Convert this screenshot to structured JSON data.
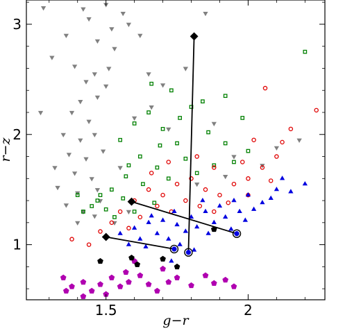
{
  "chart_data": {
    "type": "scatter",
    "title": "",
    "xlabel": "g−r",
    "ylabel": "r−z",
    "xlim": [
      1.22,
      2.27
    ],
    "ylim": [
      0.5,
      3.22
    ],
    "xticks": [
      1.5,
      2.0
    ],
    "xtick_labels": [
      "1.5",
      "2"
    ],
    "yticks": [
      1,
      2,
      3
    ],
    "ytick_labels": [
      "1",
      "2",
      "3"
    ],
    "grid": false,
    "legend": "none",
    "colors": {
      "gray": "#808080",
      "green": "#008000",
      "red": "#e00000",
      "blue": "#0000e0",
      "magenta": "#b000b0",
      "black": "#000000"
    },
    "series": [
      {
        "marker": "triangle-down",
        "color": "#808080",
        "filled": true,
        "points": [
          [
            1.42,
            3.14
          ],
          [
            1.44,
            3.05
          ],
          [
            1.5,
            3.18
          ],
          [
            1.52,
            2.96
          ],
          [
            1.56,
            3.1
          ],
          [
            1.47,
            2.85
          ],
          [
            1.53,
            2.78
          ],
          [
            1.58,
            3.0
          ],
          [
            1.39,
            2.62
          ],
          [
            1.43,
            2.48
          ],
          [
            1.46,
            2.55
          ],
          [
            1.41,
            2.3
          ],
          [
            1.47,
            2.34
          ],
          [
            1.5,
            2.44
          ],
          [
            1.38,
            2.2
          ],
          [
            1.44,
            2.12
          ],
          [
            1.35,
            2.0
          ],
          [
            1.41,
            1.95
          ],
          [
            1.46,
            2.0
          ],
          [
            1.37,
            1.82
          ],
          [
            1.43,
            1.78
          ],
          [
            1.49,
            1.85
          ],
          [
            1.39,
            1.65
          ],
          [
            1.45,
            1.6
          ],
          [
            1.33,
            1.52
          ],
          [
            1.4,
            1.47
          ],
          [
            1.47,
            1.5
          ],
          [
            1.36,
            1.36
          ],
          [
            1.42,
            1.3
          ],
          [
            1.48,
            1.4
          ],
          [
            1.4,
            1.2
          ],
          [
            1.46,
            1.26
          ],
          [
            1.28,
            3.15
          ],
          [
            1.31,
            2.7
          ],
          [
            1.27,
            2.2
          ],
          [
            1.32,
            1.7
          ],
          [
            1.62,
            2.9
          ],
          [
            1.65,
            2.55
          ],
          [
            1.7,
            2.45
          ],
          [
            1.78,
            2.6
          ],
          [
            1.85,
            3.1
          ],
          [
            1.82,
            1.55
          ],
          [
            1.92,
            1.62
          ],
          [
            2.05,
            1.72
          ],
          [
            2.18,
            1.95
          ],
          [
            1.88,
            2.1
          ],
          [
            1.6,
            2.15
          ],
          [
            1.55,
            1.7
          ],
          [
            1.53,
            1.2
          ],
          [
            1.58,
            1.3
          ],
          [
            1.66,
            2.25
          ],
          [
            1.72,
            2.05
          ],
          [
            1.95,
            1.8
          ],
          [
            2.1,
            1.88
          ],
          [
            1.51,
            2.6
          ],
          [
            1.36,
            2.9
          ]
        ]
      },
      {
        "marker": "square",
        "color": "#008000",
        "filled": false,
        "points": [
          [
            1.55,
            1.95
          ],
          [
            1.6,
            2.1
          ],
          [
            1.65,
            2.2
          ],
          [
            1.7,
            2.05
          ],
          [
            1.75,
            1.92
          ],
          [
            1.8,
            2.25
          ],
          [
            1.62,
            1.8
          ],
          [
            1.68,
            1.7
          ],
          [
            1.57,
            1.62
          ],
          [
            1.52,
            1.5
          ],
          [
            1.47,
            1.4
          ],
          [
            1.5,
            1.32
          ],
          [
            1.56,
            1.42
          ],
          [
            1.63,
            1.55
          ],
          [
            1.72,
            1.6
          ],
          [
            1.78,
            1.78
          ],
          [
            1.86,
            2.02
          ],
          [
            1.92,
            1.92
          ],
          [
            1.98,
            2.15
          ],
          [
            1.84,
            2.3
          ],
          [
            1.73,
            2.4
          ],
          [
            1.66,
            2.46
          ],
          [
            1.92,
            2.35
          ],
          [
            1.95,
            1.75
          ],
          [
            1.45,
            1.35
          ],
          [
            1.48,
            1.45
          ],
          [
            1.53,
            1.25
          ],
          [
            1.42,
            1.3
          ],
          [
            1.4,
            1.45
          ],
          [
            1.6,
            1.3
          ],
          [
            1.67,
            1.38
          ],
          [
            2.0,
            1.85
          ],
          [
            1.82,
            1.65
          ],
          [
            1.88,
            1.72
          ],
          [
            2.2,
            2.75
          ],
          [
            1.76,
            2.15
          ],
          [
            1.58,
            1.72
          ],
          [
            1.69,
            1.9
          ]
        ]
      },
      {
        "marker": "circle",
        "color": "#e00000",
        "filled": false,
        "points": [
          [
            1.55,
            1.3
          ],
          [
            1.6,
            1.4
          ],
          [
            1.65,
            1.5
          ],
          [
            1.7,
            1.45
          ],
          [
            1.75,
            1.55
          ],
          [
            1.8,
            1.6
          ],
          [
            1.85,
            1.5
          ],
          [
            1.9,
            1.45
          ],
          [
            1.95,
            1.55
          ],
          [
            2.0,
            1.6
          ],
          [
            2.05,
            1.7
          ],
          [
            2.1,
            1.8
          ],
          [
            2.06,
            2.42
          ],
          [
            2.24,
            2.22
          ],
          [
            2.15,
            2.05
          ],
          [
            2.02,
            1.95
          ],
          [
            1.98,
            1.75
          ],
          [
            1.62,
            1.25
          ],
          [
            1.68,
            1.35
          ],
          [
            1.73,
            1.3
          ],
          [
            1.78,
            1.4
          ],
          [
            1.83,
            1.35
          ],
          [
            1.88,
            1.3
          ],
          [
            1.93,
            1.38
          ],
          [
            1.52,
            1.2
          ],
          [
            1.48,
            1.12
          ],
          [
            1.58,
            1.15
          ],
          [
            1.38,
            1.05
          ],
          [
            1.44,
            1.0
          ],
          [
            1.66,
            1.65
          ],
          [
            1.72,
            1.75
          ],
          [
            1.82,
            1.8
          ],
          [
            1.88,
            1.7
          ],
          [
            2.08,
            1.58
          ],
          [
            2.12,
            1.93
          ],
          [
            2.0,
            1.45
          ]
        ]
      },
      {
        "marker": "triangle-up",
        "color": "#0000e0",
        "filled": true,
        "points": [
          [
            1.55,
            1.1
          ],
          [
            1.6,
            1.15
          ],
          [
            1.65,
            1.2
          ],
          [
            1.7,
            1.22
          ],
          [
            1.75,
            1.18
          ],
          [
            1.8,
            1.25
          ],
          [
            1.85,
            1.3
          ],
          [
            1.9,
            1.35
          ],
          [
            1.95,
            1.4
          ],
          [
            2.0,
            1.45
          ],
          [
            2.05,
            1.38
          ],
          [
            2.1,
            1.5
          ],
          [
            2.15,
            1.48
          ],
          [
            2.2,
            1.55
          ],
          [
            1.62,
            1.05
          ],
          [
            1.68,
            1.1
          ],
          [
            1.72,
            1.05
          ],
          [
            1.78,
            1.12
          ],
          [
            1.82,
            1.16
          ],
          [
            1.88,
            1.2
          ],
          [
            1.92,
            1.25
          ],
          [
            1.97,
            1.3
          ],
          [
            2.02,
            1.32
          ],
          [
            2.08,
            1.42
          ],
          [
            1.58,
            1.0
          ],
          [
            1.64,
            0.98
          ],
          [
            1.76,
            1.0
          ],
          [
            1.86,
            1.1
          ],
          [
            1.94,
            1.14
          ],
          [
            1.99,
            1.22
          ],
          [
            1.73,
            0.85
          ],
          [
            1.81,
            0.95
          ],
          [
            2.12,
            1.6
          ],
          [
            1.66,
            1.26
          ],
          [
            1.74,
            1.3
          ],
          [
            1.84,
            1.4
          ]
        ]
      },
      {
        "marker": "pentagon",
        "color": "#b000b0",
        "filled": true,
        "points": [
          [
            1.35,
            0.7
          ],
          [
            1.38,
            0.62
          ],
          [
            1.42,
            0.66
          ],
          [
            1.45,
            0.58
          ],
          [
            1.48,
            0.64
          ],
          [
            1.52,
            0.7
          ],
          [
            1.55,
            0.62
          ],
          [
            1.58,
            0.66
          ],
          [
            1.62,
            0.72
          ],
          [
            1.65,
            0.64
          ],
          [
            1.68,
            0.58
          ],
          [
            1.72,
            0.66
          ],
          [
            1.75,
            0.7
          ],
          [
            1.8,
            0.63
          ],
          [
            1.85,
            0.72
          ],
          [
            1.88,
            0.65
          ],
          [
            1.92,
            0.68
          ],
          [
            1.6,
            0.85
          ],
          [
            1.36,
            0.58
          ],
          [
            1.42,
            0.53
          ],
          [
            1.5,
            0.55
          ],
          [
            1.57,
            0.75
          ],
          [
            1.7,
            0.78
          ],
          [
            1.95,
            0.62
          ]
        ]
      },
      {
        "marker": "pentagon",
        "color": "#000000",
        "filled": true,
        "points": [
          [
            1.48,
            0.85
          ],
          [
            1.59,
            0.88
          ],
          [
            1.61,
            0.82
          ],
          [
            1.7,
            0.87
          ],
          [
            1.75,
            0.8
          ],
          [
            1.88,
            1.14
          ]
        ]
      }
    ],
    "tracks": [
      {
        "color": "#000000",
        "points": [
          [
            1.81,
            2.89
          ],
          [
            1.79,
            0.93
          ]
        ],
        "markers": [
          "diamond",
          "ringed-circle"
        ]
      },
      {
        "color": "#000000",
        "points": [
          [
            1.59,
            1.39
          ],
          [
            1.96,
            1.1
          ]
        ],
        "markers": [
          "diamond",
          "ringed-circle"
        ]
      },
      {
        "color": "#000000",
        "points": [
          [
            1.5,
            1.07
          ],
          [
            1.74,
            0.96
          ]
        ],
        "markers": [
          "diamond",
          "ringed-circle"
        ]
      }
    ]
  }
}
